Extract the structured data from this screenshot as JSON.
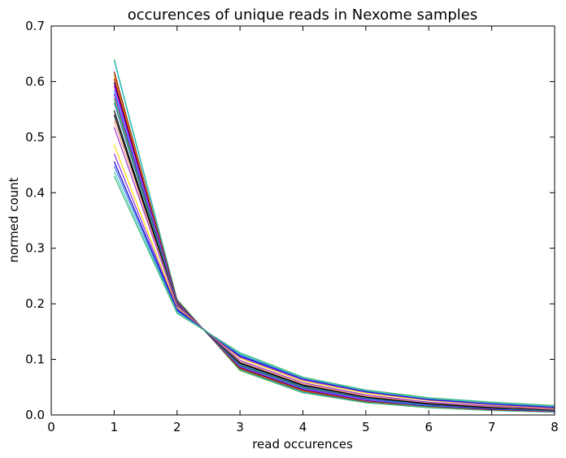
{
  "chart_data": {
    "type": "line",
    "title": "occurences of unique reads in Nexome samples",
    "xlabel": "read occurences",
    "ylabel": "normed count",
    "xlim": [
      0,
      8
    ],
    "ylim": [
      0,
      0.7
    ],
    "xticks": [
      "0",
      "1",
      "2",
      "3",
      "4",
      "5",
      "6",
      "7",
      "8"
    ],
    "yticks": [
      "0.0",
      "0.1",
      "0.2",
      "0.3",
      "0.4",
      "0.5",
      "0.6",
      "0.7"
    ],
    "grid": false,
    "legend": "none",
    "x": [
      1,
      2,
      3,
      4,
      5,
      6,
      7,
      8
    ],
    "series": [
      {
        "color": "#4daf4a",
        "values": [
          0.64,
          0.208,
          0.08,
          0.04,
          0.022,
          0.013,
          0.008,
          0.005
        ]
      },
      {
        "color": "#17becf",
        "values": [
          0.638,
          0.206,
          0.082,
          0.041,
          0.023,
          0.014,
          0.008,
          0.005
        ]
      },
      {
        "color": "#8b0000",
        "values": [
          0.618,
          0.205,
          0.083,
          0.043,
          0.024,
          0.015,
          0.009,
          0.006
        ]
      },
      {
        "color": "#d4a017",
        "values": [
          0.612,
          0.204,
          0.084,
          0.044,
          0.025,
          0.015,
          0.009,
          0.006
        ]
      },
      {
        "color": "#cc0000",
        "values": [
          0.605,
          0.203,
          0.085,
          0.045,
          0.026,
          0.016,
          0.01,
          0.006
        ]
      },
      {
        "color": "#000080",
        "values": [
          0.598,
          0.203,
          0.086,
          0.046,
          0.026,
          0.016,
          0.01,
          0.007
        ]
      },
      {
        "color": "#ff00ff",
        "values": [
          0.592,
          0.202,
          0.087,
          0.047,
          0.027,
          0.017,
          0.011,
          0.007
        ]
      },
      {
        "color": "#00bfff",
        "values": [
          0.585,
          0.201,
          0.088,
          0.048,
          0.028,
          0.017,
          0.011,
          0.007
        ]
      },
      {
        "color": "#9400d3",
        "values": [
          0.578,
          0.201,
          0.089,
          0.049,
          0.029,
          0.018,
          0.011,
          0.008
        ]
      },
      {
        "color": "#2ca02c",
        "values": [
          0.57,
          0.2,
          0.09,
          0.05,
          0.03,
          0.019,
          0.012,
          0.008
        ]
      },
      {
        "color": "#1f77b4",
        "values": [
          0.562,
          0.199,
          0.091,
          0.051,
          0.03,
          0.019,
          0.012,
          0.008
        ]
      },
      {
        "color": "#000000",
        "values": [
          0.548,
          0.198,
          0.093,
          0.053,
          0.032,
          0.02,
          0.013,
          0.009
        ]
      },
      {
        "color": "#000000",
        "values": [
          0.54,
          0.198,
          0.094,
          0.054,
          0.033,
          0.021,
          0.014,
          0.009
        ]
      },
      {
        "color": "#ffa07a",
        "values": [
          0.53,
          0.197,
          0.096,
          0.056,
          0.034,
          0.022,
          0.015,
          0.01
        ]
      },
      {
        "color": "#9932cc",
        "values": [
          0.518,
          0.196,
          0.098,
          0.058,
          0.036,
          0.023,
          0.016,
          0.011
        ]
      },
      {
        "color": "#ffd700",
        "values": [
          0.486,
          0.193,
          0.102,
          0.061,
          0.039,
          0.026,
          0.018,
          0.012
        ]
      },
      {
        "color": "#8a2be2",
        "values": [
          0.47,
          0.191,
          0.104,
          0.063,
          0.041,
          0.027,
          0.019,
          0.013
        ]
      },
      {
        "color": "#0000cd",
        "values": [
          0.456,
          0.189,
          0.106,
          0.065,
          0.042,
          0.028,
          0.02,
          0.014
        ]
      },
      {
        "color": "#4169e1",
        "values": [
          0.448,
          0.187,
          0.108,
          0.066,
          0.043,
          0.029,
          0.021,
          0.015
        ]
      },
      {
        "color": "#48d1cc",
        "values": [
          0.438,
          0.185,
          0.11,
          0.067,
          0.044,
          0.03,
          0.022,
          0.016
        ]
      },
      {
        "color": "#3cb371",
        "values": [
          0.43,
          0.183,
          0.112,
          0.068,
          0.045,
          0.031,
          0.023,
          0.017
        ]
      }
    ]
  }
}
